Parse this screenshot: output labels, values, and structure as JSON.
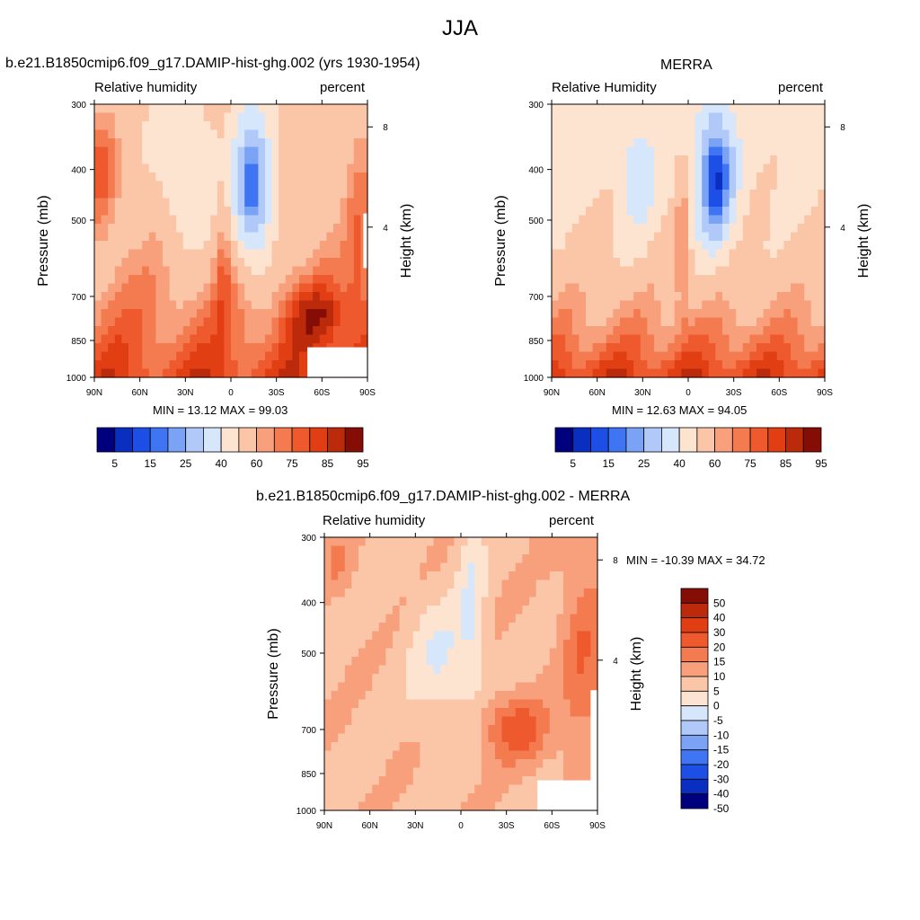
{
  "figure": {
    "title": "JJA"
  },
  "chart_data": [
    {
      "type": "contour",
      "title": "b.e21.B1850cmip6.f09_g17.DAMIP-hist-ghg.002 (yrs 1930-1954)",
      "left_subtitle": "Relative humidity",
      "right_subtitle": "percent",
      "ylabel": "Pressure (mb)",
      "y2label": "Height (km)",
      "x_ticks": [
        "90N",
        "60N",
        "30N",
        "0",
        "30S",
        "60S",
        "90S"
      ],
      "y_ticks": [
        "300",
        "400",
        "500",
        "700",
        "850",
        "1000"
      ],
      "y2_ticks": [
        "8",
        "4"
      ],
      "stats_text": "MIN =  13.12  MAX =  99.03",
      "min": 13.12,
      "max": 99.03,
      "colorbar_labels": [
        "5",
        "15",
        "25",
        "40",
        "60",
        "75",
        "85",
        "95"
      ],
      "colorbar_orientation": "horizontal"
    },
    {
      "type": "contour",
      "title": "MERRA",
      "left_subtitle": "Relative Humidity",
      "right_subtitle": "percent",
      "ylabel": "Pressure (mb)",
      "y2label": "Height (km)",
      "x_ticks": [
        "90N",
        "60N",
        "30N",
        "0",
        "30S",
        "60S",
        "90S"
      ],
      "y_ticks": [
        "300",
        "400",
        "500",
        "700",
        "850",
        "1000"
      ],
      "y2_ticks": [
        "8",
        "4"
      ],
      "stats_text": "MIN =  12.63  MAX =  94.05",
      "min": 12.63,
      "max": 94.05,
      "colorbar_labels": [
        "5",
        "15",
        "25",
        "40",
        "60",
        "75",
        "85",
        "95"
      ],
      "colorbar_orientation": "horizontal"
    },
    {
      "type": "contour",
      "title": "b.e21.B1850cmip6.f09_g17.DAMIP-hist-ghg.002 - MERRA",
      "left_subtitle": "Relative humidity",
      "right_subtitle": "percent",
      "ylabel": "Pressure (mb)",
      "y2label": "Height (km)",
      "x_ticks": [
        "90N",
        "60N",
        "30N",
        "0",
        "30S",
        "60S",
        "90S"
      ],
      "y_ticks": [
        "300",
        "400",
        "500",
        "700",
        "850",
        "1000"
      ],
      "y2_ticks": [
        "8",
        "4"
      ],
      "stats_text": "MIN = -10.39  MAX =  34.72",
      "min": -10.39,
      "max": 34.72,
      "colorbar_labels": [
        "50",
        "40",
        "30",
        "20",
        "15",
        "10",
        "5",
        "0",
        "-5",
        "-10",
        "-15",
        "-20",
        "-30",
        "-40",
        "-50"
      ],
      "colorbar_orientation": "vertical"
    }
  ],
  "colors": {
    "rh_scale": [
      "#00007f",
      "#0a2ec0",
      "#1d4fe6",
      "#3f75f2",
      "#7aa3f5",
      "#b0c9f8",
      "#d6e6fb",
      "#fde4d0",
      "#fbc6a8",
      "#f8a07c",
      "#f47a50",
      "#ee5a2e",
      "#e23e14",
      "#bc2a0c",
      "#860d05"
    ],
    "diff_scale": [
      "#00007f",
      "#0a2ec0",
      "#1d4fe6",
      "#3f75f2",
      "#7aa3f5",
      "#b0c9f8",
      "#d6e6fb",
      "#fde4d0",
      "#fbc6a8",
      "#f8a07c",
      "#f47a50",
      "#ee5a2e",
      "#e23e14",
      "#bc2a0c",
      "#860d05"
    ]
  }
}
